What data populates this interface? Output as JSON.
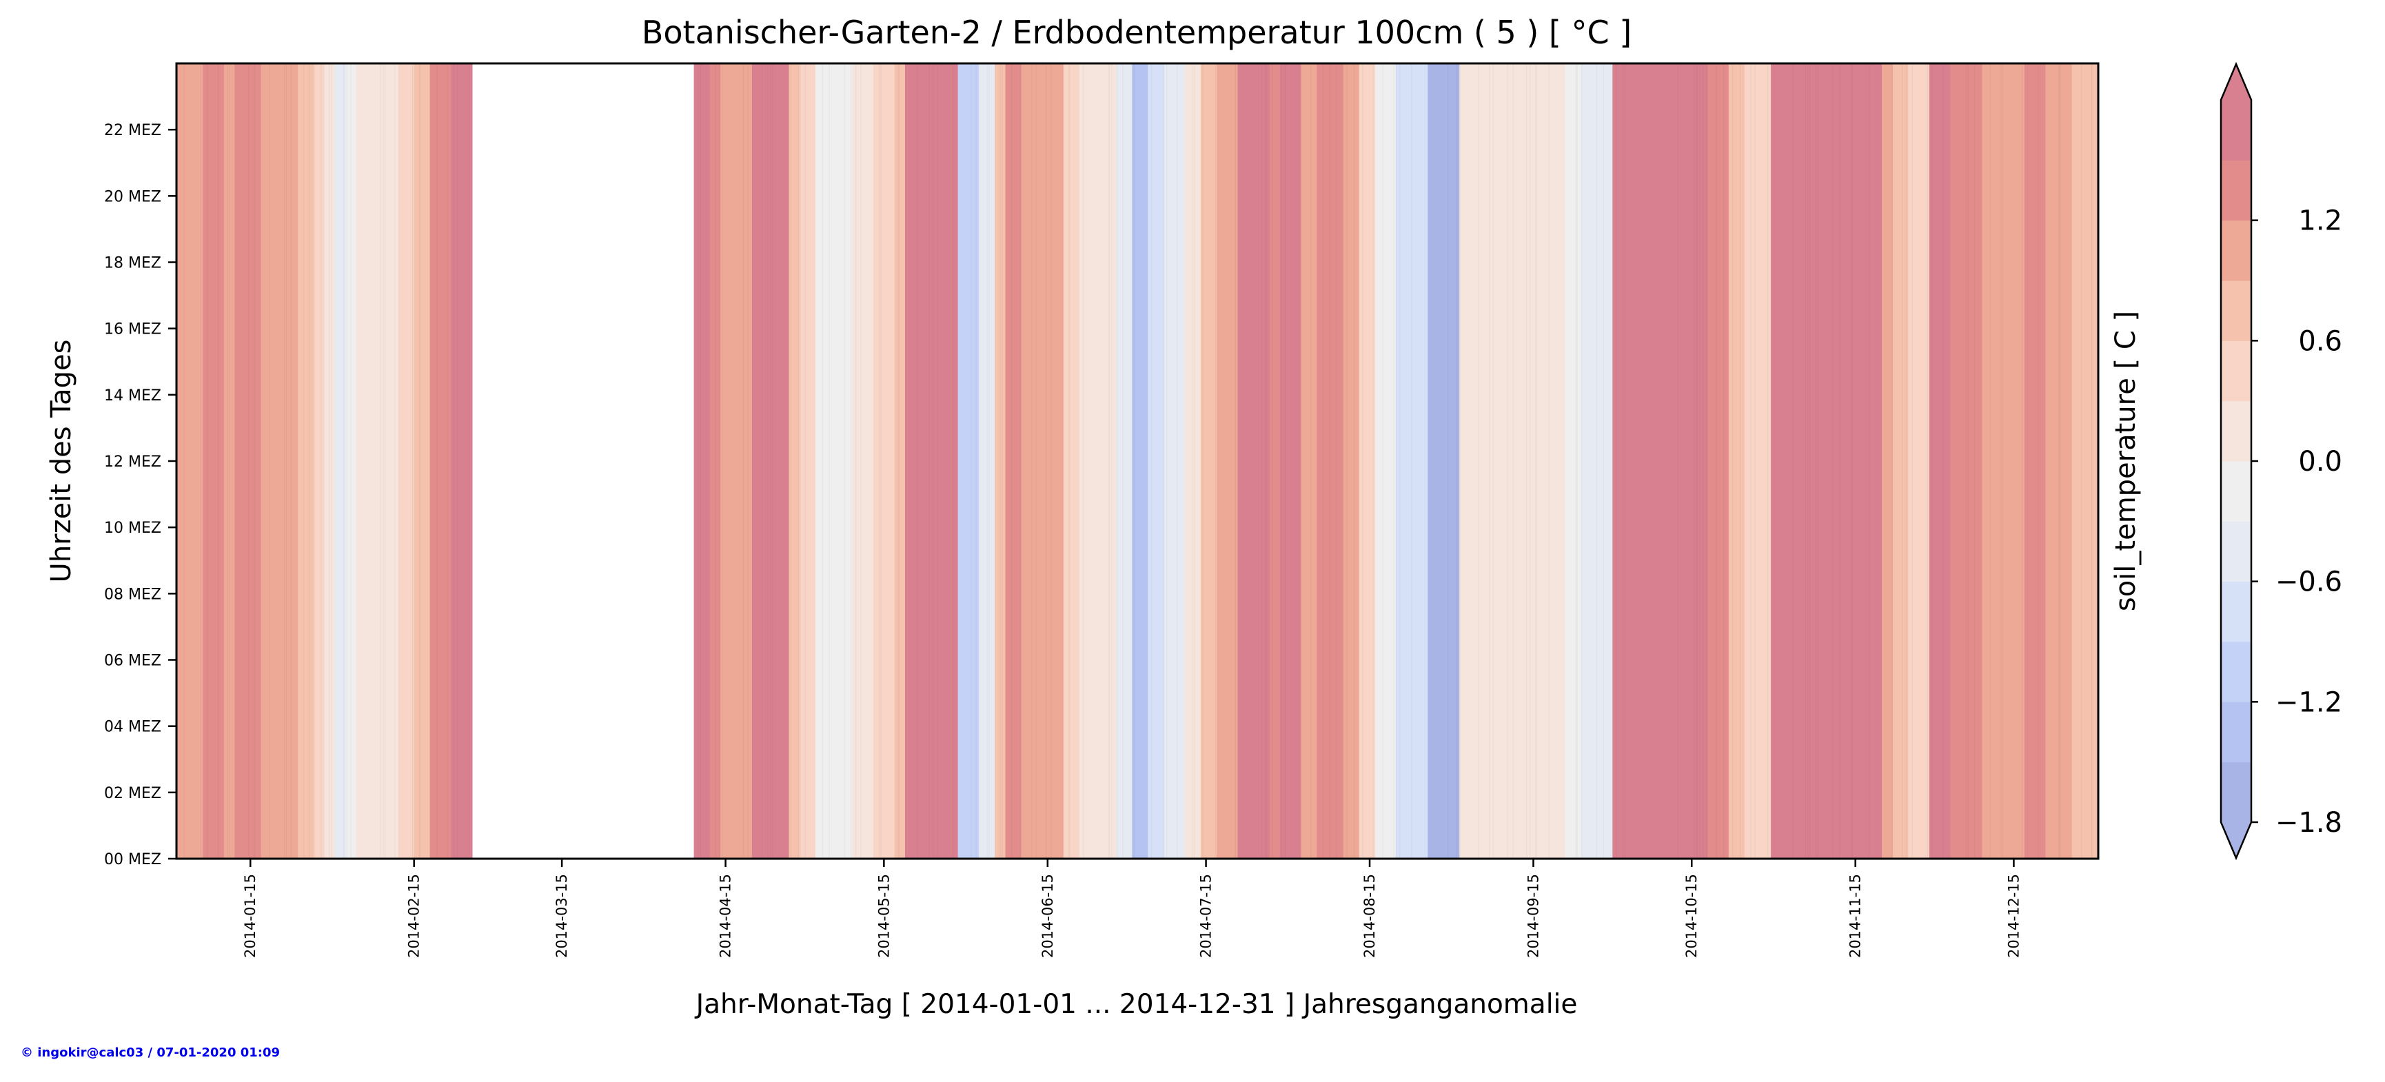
{
  "chart_data": {
    "type": "heatmap",
    "title": "Botanischer-Garten-2 / Erdbodentemperatur 100cm ( 5 ) [ °C ]",
    "xlabel": "Jahr-Monat-Tag [ 2014-01-01 ... 2014-12-31 ] Jahresganganomalie",
    "ylabel": "Uhrzeit des Tages",
    "colorbar_label": "soil_temperature [ C ]",
    "xlim": [
      "2014-01-01",
      "2014-12-31"
    ],
    "ylim": [
      0,
      24
    ],
    "x_ticks": [
      "2014-01-15",
      "2014-02-15",
      "2014-03-15",
      "2014-04-15",
      "2014-05-15",
      "2014-06-15",
      "2014-07-15",
      "2014-08-15",
      "2014-09-15",
      "2014-10-15",
      "2014-11-15",
      "2014-12-15"
    ],
    "y_ticks": [
      {
        "hour": 0,
        "label": "00 MEZ"
      },
      {
        "hour": 2,
        "label": "02 MEZ"
      },
      {
        "hour": 4,
        "label": "04 MEZ"
      },
      {
        "hour": 6,
        "label": "06 MEZ"
      },
      {
        "hour": 8,
        "label": "08 MEZ"
      },
      {
        "hour": 10,
        "label": "10 MEZ"
      },
      {
        "hour": 12,
        "label": "12 MEZ"
      },
      {
        "hour": 14,
        "label": "14 MEZ"
      },
      {
        "hour": 16,
        "label": "16 MEZ"
      },
      {
        "hour": 18,
        "label": "18 MEZ"
      },
      {
        "hour": 20,
        "label": "20 MEZ"
      },
      {
        "hour": 22,
        "label": "22 MEZ"
      }
    ],
    "colorbar": {
      "levels": [
        -1.8,
        -1.5,
        -1.2,
        -0.9,
        -0.6,
        -0.3,
        0.0,
        0.3,
        0.6,
        0.9,
        1.2,
        1.5
      ],
      "colors": [
        "#a9b4e6",
        "#b4c3f1",
        "#c4d2f7",
        "#d6e0f6",
        "#e6ebf3",
        "#efefef",
        "#f6e5dc",
        "#f8d5c6",
        "#f5c2ae",
        "#eda996",
        "#e28d8c",
        "#d98090"
      ],
      "extend": "both",
      "tick_values": [
        -1.8,
        -1.2,
        -0.6,
        0.0,
        0.6,
        1.2
      ],
      "tick_labels": [
        "−1.8",
        "−1.2",
        "−0.6",
        "0.0",
        "0.6",
        "1.2"
      ]
    },
    "bands": [
      {
        "start": "2014-01-01",
        "end": "2014-01-06",
        "value": 1.0
      },
      {
        "start": "2014-01-06",
        "end": "2014-01-10",
        "value": 1.3
      },
      {
        "start": "2014-01-10",
        "end": "2014-01-12",
        "value": 1.1
      },
      {
        "start": "2014-01-12",
        "end": "2014-01-17",
        "value": 1.4
      },
      {
        "start": "2014-01-17",
        "end": "2014-01-24",
        "value": 1.1
      },
      {
        "start": "2014-01-24",
        "end": "2014-01-27",
        "value": 0.8
      },
      {
        "start": "2014-01-27",
        "end": "2014-01-29",
        "value": 0.5
      },
      {
        "start": "2014-01-29",
        "end": "2014-01-31",
        "value": 0.0
      },
      {
        "start": "2014-01-31",
        "end": "2014-02-02",
        "value": -0.5
      },
      {
        "start": "2014-02-02",
        "end": "2014-02-04",
        "value": -0.2
      },
      {
        "start": "2014-02-04",
        "end": "2014-02-12",
        "value": 0.2
      },
      {
        "start": "2014-02-12",
        "end": "2014-02-15",
        "value": 0.5
      },
      {
        "start": "2014-02-15",
        "end": "2014-02-18",
        "value": 0.8
      },
      {
        "start": "2014-02-18",
        "end": "2014-02-22",
        "value": 1.2
      },
      {
        "start": "2014-02-22",
        "end": "2014-02-26",
        "value": 1.5
      },
      {
        "start": "2014-04-09",
        "end": "2014-04-12",
        "value": 1.5
      },
      {
        "start": "2014-04-12",
        "end": "2014-04-14",
        "value": 1.3
      },
      {
        "start": "2014-04-14",
        "end": "2014-04-20",
        "value": 1.1
      },
      {
        "start": "2014-04-20",
        "end": "2014-04-27",
        "value": 1.5
      },
      {
        "start": "2014-04-27",
        "end": "2014-04-29",
        "value": 0.8
      },
      {
        "start": "2014-04-29",
        "end": "2014-05-02",
        "value": 0.4
      },
      {
        "start": "2014-05-02",
        "end": "2014-05-06",
        "value": -0.2
      },
      {
        "start": "2014-05-06",
        "end": "2014-05-09",
        "value": -0.1
      },
      {
        "start": "2014-05-09",
        "end": "2014-05-13",
        "value": 0.1
      },
      {
        "start": "2014-05-13",
        "end": "2014-05-17",
        "value": 0.4
      },
      {
        "start": "2014-05-17",
        "end": "2014-05-19",
        "value": 0.8
      },
      {
        "start": "2014-05-19",
        "end": "2014-05-29",
        "value": 1.5
      },
      {
        "start": "2014-05-29",
        "end": "2014-06-02",
        "value": -1.0
      },
      {
        "start": "2014-06-02",
        "end": "2014-06-05",
        "value": -0.5
      },
      {
        "start": "2014-06-05",
        "end": "2014-06-07",
        "value": 0.7
      },
      {
        "start": "2014-06-07",
        "end": "2014-06-10",
        "value": 1.3
      },
      {
        "start": "2014-06-10",
        "end": "2014-06-18",
        "value": 1.0
      },
      {
        "start": "2014-06-18",
        "end": "2014-06-21",
        "value": 0.5
      },
      {
        "start": "2014-06-21",
        "end": "2014-06-28",
        "value": 0.1
      },
      {
        "start": "2014-06-28",
        "end": "2014-07-01",
        "value": -0.5
      },
      {
        "start": "2014-07-01",
        "end": "2014-07-04",
        "value": -1.5
      },
      {
        "start": "2014-07-04",
        "end": "2014-07-07",
        "value": -0.9
      },
      {
        "start": "2014-07-07",
        "end": "2014-07-11",
        "value": -0.4
      },
      {
        "start": "2014-07-11",
        "end": "2014-07-14",
        "value": 0.2
      },
      {
        "start": "2014-07-14",
        "end": "2014-07-17",
        "value": 0.7
      },
      {
        "start": "2014-07-17",
        "end": "2014-07-21",
        "value": 1.1
      },
      {
        "start": "2014-07-21",
        "end": "2014-07-27",
        "value": 1.5
      },
      {
        "start": "2014-07-27",
        "end": "2014-07-29",
        "value": 1.2
      },
      {
        "start": "2014-07-29",
        "end": "2014-08-02",
        "value": 1.5
      },
      {
        "start": "2014-08-02",
        "end": "2014-08-05",
        "value": 1.1
      },
      {
        "start": "2014-08-05",
        "end": "2014-08-10",
        "value": 1.4
      },
      {
        "start": "2014-08-10",
        "end": "2014-08-13",
        "value": 0.9
      },
      {
        "start": "2014-08-13",
        "end": "2014-08-16",
        "value": 0.5
      },
      {
        "start": "2014-08-16",
        "end": "2014-08-20",
        "value": -0.3
      },
      {
        "start": "2014-08-20",
        "end": "2014-08-26",
        "value": -0.9
      },
      {
        "start": "2014-08-26",
        "end": "2014-09-01",
        "value": -1.6
      },
      {
        "start": "2014-09-01",
        "end": "2014-09-05",
        "value": 0.2
      },
      {
        "start": "2014-09-05",
        "end": "2014-09-14",
        "value": 0.1
      },
      {
        "start": "2014-09-14",
        "end": "2014-09-21",
        "value": 0.2
      },
      {
        "start": "2014-09-21",
        "end": "2014-09-24",
        "value": -0.3
      },
      {
        "start": "2014-09-24",
        "end": "2014-09-30",
        "value": -0.6
      },
      {
        "start": "2014-09-30",
        "end": "2014-10-18",
        "value": 1.5
      },
      {
        "start": "2014-10-18",
        "end": "2014-10-22",
        "value": 1.2
      },
      {
        "start": "2014-10-22",
        "end": "2014-10-25",
        "value": 0.8
      },
      {
        "start": "2014-10-25",
        "end": "2014-10-30",
        "value": 0.4
      },
      {
        "start": "2014-10-30",
        "end": "2014-11-20",
        "value": 1.5
      },
      {
        "start": "2014-11-20",
        "end": "2014-11-22",
        "value": 1.0
      },
      {
        "start": "2014-11-22",
        "end": "2014-11-25",
        "value": 0.6
      },
      {
        "start": "2014-11-25",
        "end": "2014-11-29",
        "value": 0.3
      },
      {
        "start": "2014-11-29",
        "end": "2014-12-03",
        "value": 1.5
      },
      {
        "start": "2014-12-03",
        "end": "2014-12-09",
        "value": 1.2
      },
      {
        "start": "2014-12-09",
        "end": "2014-12-17",
        "value": 0.9
      },
      {
        "start": "2014-12-17",
        "end": "2014-12-21",
        "value": 1.3
      },
      {
        "start": "2014-12-21",
        "end": "2014-12-26",
        "value": 1.0
      },
      {
        "start": "2014-12-26",
        "end": "2014-12-31",
        "value": 0.6
      }
    ],
    "no_data_periods": [
      {
        "start": "2014-02-26",
        "end": "2014-04-09"
      }
    ]
  },
  "credit": "© ingokir@calc03 / 07-01-2020 01:09"
}
